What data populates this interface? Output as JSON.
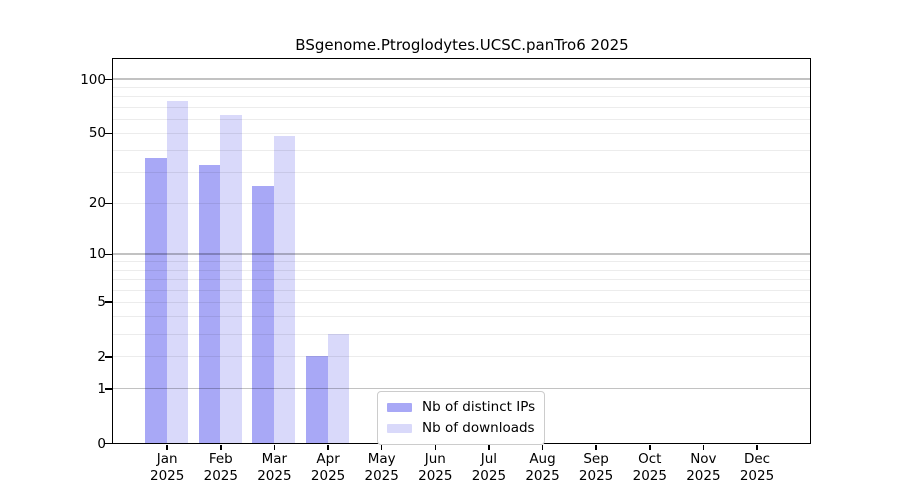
{
  "chart_data": {
    "type": "bar",
    "title": "BSgenome.Ptroglodytes.UCSC.panTro6 2025",
    "categories": [
      "Jan",
      "Feb",
      "Mar",
      "Apr",
      "May",
      "Jun",
      "Jul",
      "Aug",
      "Sep",
      "Oct",
      "Nov",
      "Dec"
    ],
    "year_label": "2025",
    "series": [
      {
        "name": "Nb of distinct IPs",
        "color": "#a8a8f6",
        "values": [
          36,
          33,
          25,
          2,
          0,
          0,
          0,
          0,
          0,
          0,
          0,
          0
        ]
      },
      {
        "name": "Nb of downloads",
        "color": "#d9d9fa",
        "values": [
          75,
          63,
          48,
          3,
          0,
          0,
          0,
          0,
          0,
          0,
          0,
          0
        ]
      }
    ],
    "y_axis": {
      "scale": "log1p",
      "tick_values": [
        0,
        1,
        2,
        5,
        10,
        20,
        50,
        100
      ],
      "major_gridlines": [
        1,
        10,
        100
      ],
      "minor_gridlines": [
        2,
        3,
        4,
        5,
        6,
        7,
        8,
        9,
        20,
        30,
        40,
        50,
        60,
        70,
        80,
        90
      ],
      "ylim": [
        0,
        130
      ]
    },
    "legend": {
      "position": "lower center",
      "entries": [
        "Nb of distinct IPs",
        "Nb of downloads"
      ]
    },
    "grid": true
  }
}
